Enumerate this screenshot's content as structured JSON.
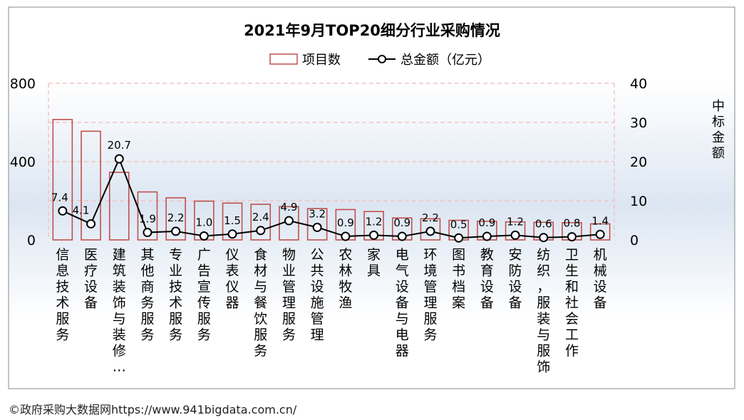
{
  "source_note": "©政府采购大数据网https://www.941bigdata.com.cn/",
  "colors": {
    "bar_stroke": "#c0504d",
    "line": "#000000",
    "grid": "#f2c4c4",
    "bg_top": "#ffffff",
    "bg_mid": "#dce6f2",
    "bg_bottom": "#ffffff",
    "frame": "#888888"
  },
  "chart_data": {
    "type": "bar",
    "title": "2021年9月TOP20细分行业采购情况",
    "categories": [
      "信息技术服务",
      "医疗设备",
      "建筑装饰与装修…",
      "其他商务服务",
      "专业技术服务",
      "广告宣传服务",
      "仪表仪器",
      "食材与餐饮服务",
      "物业管理服务",
      "公共设施管理",
      "农林牧渔",
      "家具",
      "电气设备与电器",
      "环境管理服务",
      "图书档案",
      "教育设备",
      "安防设备",
      "纺织，服装与服饰",
      "卫生和社会工作",
      "机械设备"
    ],
    "series": [
      {
        "name": "项目数",
        "type": "bar",
        "axis": "left",
        "values": [
          615,
          555,
          345,
          245,
          215,
          198,
          188,
          182,
          170,
          160,
          155,
          145,
          112,
          108,
          100,
          95,
          92,
          90,
          88,
          82
        ]
      },
      {
        "name": "总金额（亿元）",
        "type": "line",
        "axis": "right",
        "values": [
          7.4,
          4.1,
          20.7,
          1.9,
          2.2,
          1.0,
          1.5,
          2.4,
          4.9,
          3.2,
          0.9,
          1.2,
          0.9,
          2.2,
          0.5,
          0.9,
          1.2,
          0.6,
          0.8,
          1.4
        ],
        "labels": [
          "7.4",
          "4.1",
          "20.7",
          "1.9",
          "2.2",
          "1.0",
          "1.5",
          "2.4",
          "4.9",
          "3.2",
          "0.9",
          "1.2",
          "0.9",
          "2.2",
          "0.5",
          "0.9",
          "1.2",
          "0.6",
          "0.8",
          "1.4"
        ]
      }
    ],
    "y_left": {
      "ticks": [
        "0",
        "400",
        "800"
      ],
      "tick_values": [
        0,
        400,
        800
      ],
      "ylim": [
        0,
        800
      ]
    },
    "y_right": {
      "label": "中标金额",
      "ticks": [
        "0",
        "10",
        "20",
        "30",
        "40"
      ],
      "tick_values": [
        0,
        10,
        20,
        30,
        40
      ],
      "ylim": [
        0,
        40
      ]
    },
    "grid": true,
    "legend_position": "top-center"
  }
}
